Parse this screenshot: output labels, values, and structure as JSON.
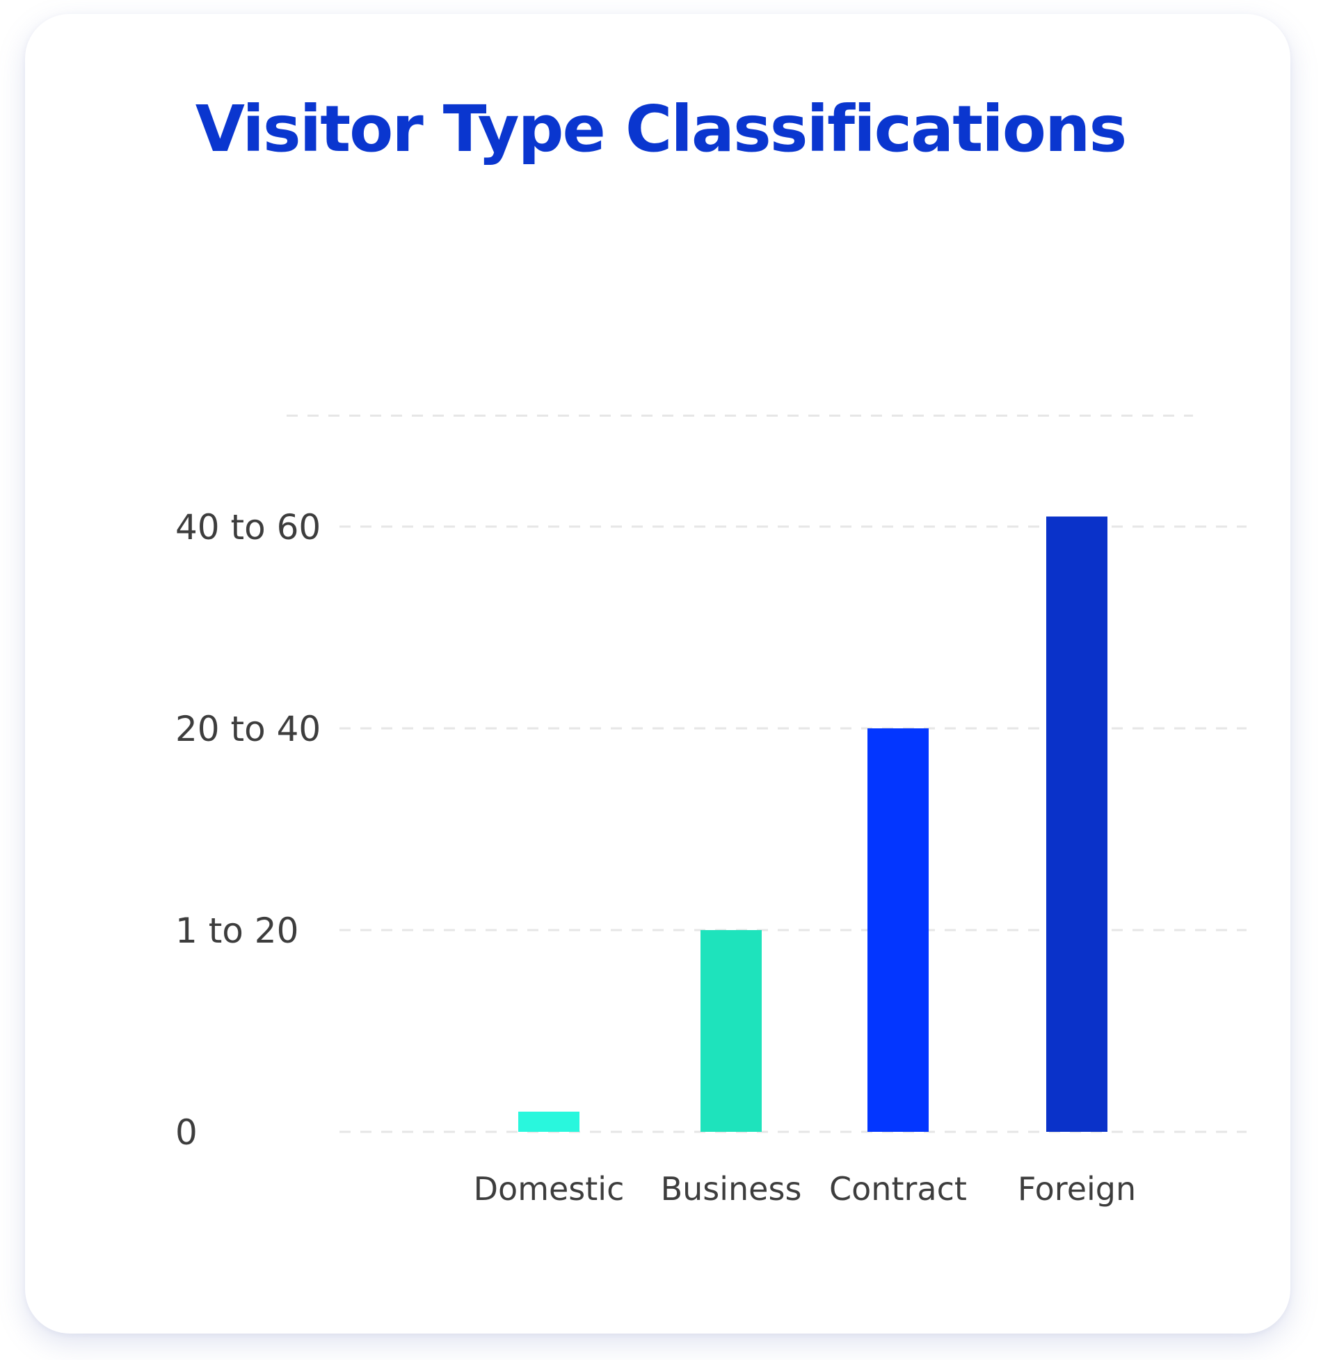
{
  "chart_data": {
    "type": "bar",
    "title": "Visitor Type Classifications",
    "xlabel": "",
    "ylabel": "",
    "categories": [
      "Domestic",
      "Business",
      "Contract",
      "Foreign"
    ],
    "values": [
      0.1,
      1,
      2,
      3.05
    ],
    "y_tick_labels": [
      "0",
      "1 to 20",
      "20 to 40",
      "40 to 60"
    ],
    "y_tick_values": [
      0,
      1,
      2,
      3
    ],
    "ylim": [
      0,
      3.9
    ],
    "grid": true,
    "grid_style": "dashed",
    "legend": "none",
    "colors": [
      "#29f7dd",
      "#1ee3bc",
      "#0336ff",
      "#0a32c9"
    ]
  }
}
